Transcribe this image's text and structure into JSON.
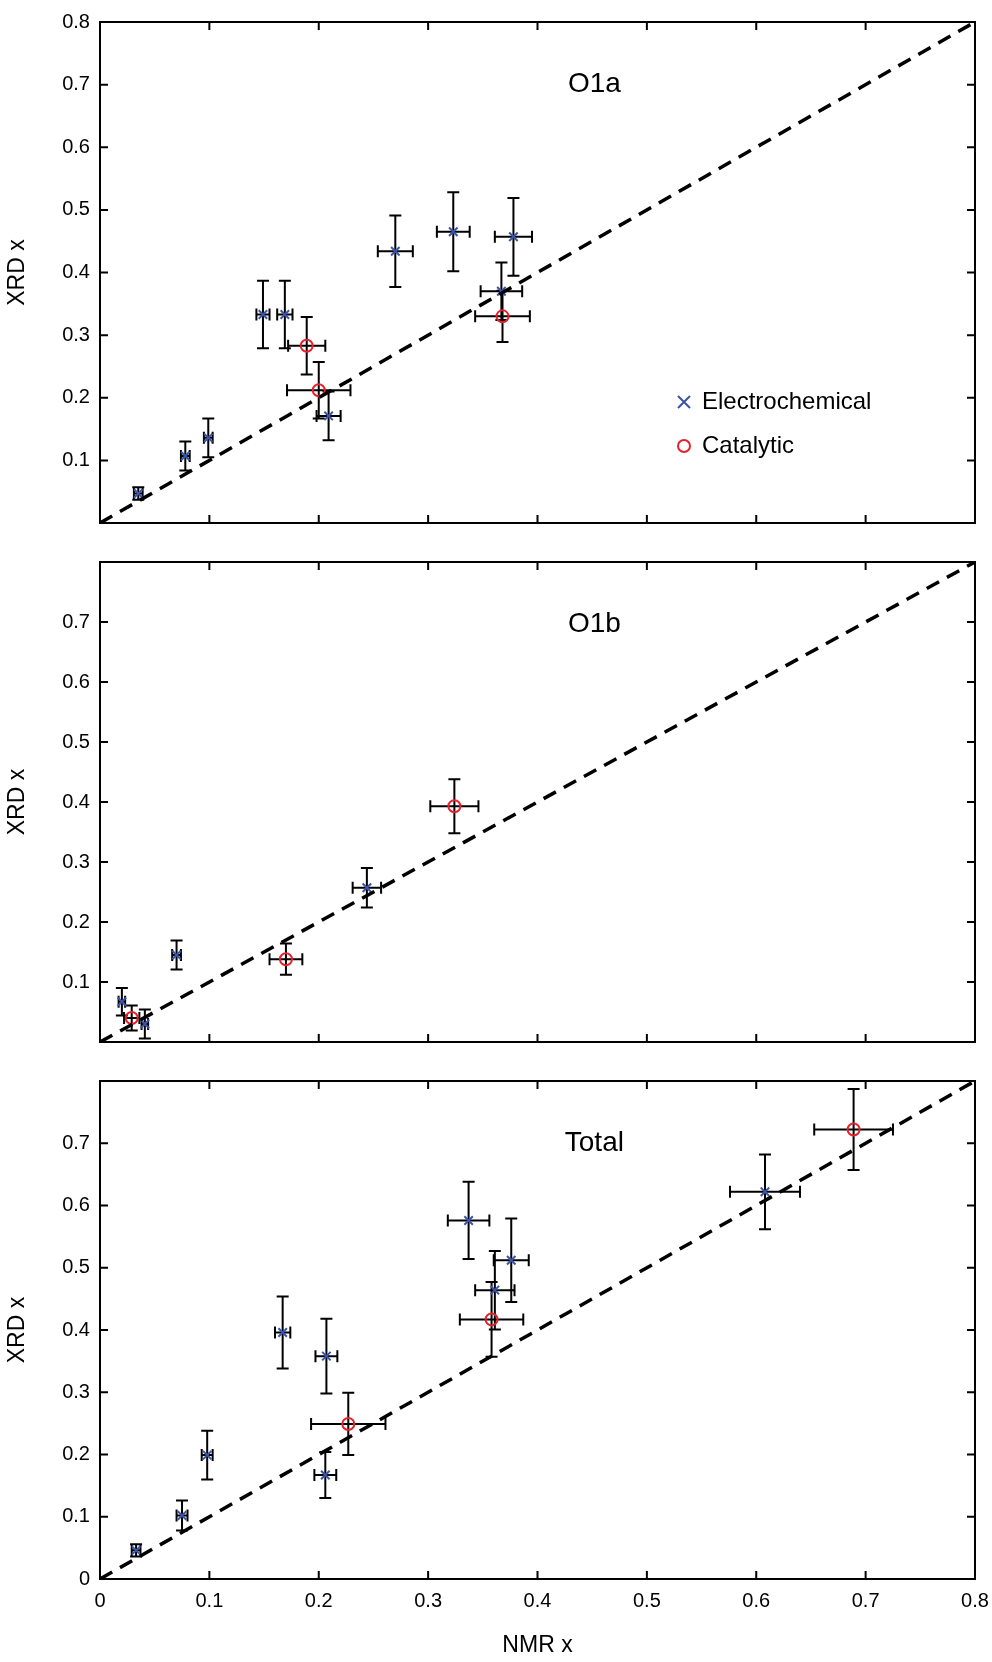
{
  "chart_data": [
    {
      "type": "scatter",
      "title": "O1a",
      "ylabel": "XRD x",
      "xlim": [
        0,
        0.8
      ],
      "xticks": [
        0,
        0.1,
        0.2,
        0.3,
        0.4,
        0.5,
        0.6,
        0.7,
        0.8
      ],
      "ylim": [
        0,
        0.8
      ],
      "yticks": [
        0.1,
        0.2,
        0.3,
        0.4,
        0.5,
        0.6,
        0.7,
        0.8
      ],
      "tick_labels": "y",
      "legend": "bottom right",
      "series": [
        {
          "type": "line",
          "color": "#000000",
          "marker": "none",
          "line_style": "dashed",
          "x": [
            0,
            0.8
          ],
          "values": [
            0,
            0.8
          ]
        },
        {
          "name": "Electrochemical",
          "color": "#3a55a4",
          "marker": "cross",
          "x": [
            0.035,
            0.078,
            0.099,
            0.149,
            0.169,
            0.209,
            0.27,
            0.323,
            0.367,
            0.378
          ],
          "values": [
            0.047,
            0.107,
            0.136,
            0.333,
            0.333,
            0.171,
            0.434,
            0.465,
            0.37,
            0.457
          ],
          "errors": [
            0.01,
            0.023,
            0.031,
            0.054,
            0.054,
            0.039,
            0.057,
            0.063,
            0.046,
            0.062
          ],
          "xerrors": [
            0.004,
            0.004,
            0.004,
            0.006,
            0.007,
            0.011,
            0.016,
            0.015,
            0.019,
            0.017
          ]
        },
        {
          "name": "Catalytic",
          "color": "#e8202a",
          "marker": "circle",
          "x": [
            0.189,
            0.2,
            0.368
          ],
          "values": [
            0.283,
            0.212,
            0.33
          ],
          "errors": [
            0.046,
            0.045,
            0.041
          ],
          "xerrors": [
            0.017,
            0.029,
            0.025
          ]
        }
      ]
    },
    {
      "type": "scatter",
      "title": "O1b",
      "ylabel": "XRD x",
      "xlim": [
        0,
        0.8
      ],
      "xticks": [
        0,
        0.1,
        0.2,
        0.3,
        0.4,
        0.5,
        0.6,
        0.7,
        0.8
      ],
      "ylim": [
        0,
        0.8
      ],
      "yticks": [
        0.1,
        0.2,
        0.3,
        0.4,
        0.5,
        0.6,
        0.7
      ],
      "tick_labels": "y",
      "series": [
        {
          "type": "line",
          "color": "#000000",
          "marker": "none",
          "line_style": "dashed",
          "x": [
            0,
            0.8
          ],
          "values": [
            0,
            0.8
          ]
        },
        {
          "color": "#3a55a4",
          "marker": "cross",
          "x": [
            0.02,
            0.041,
            0.07,
            0.244
          ],
          "values": [
            0.067,
            0.03,
            0.145,
            0.257
          ],
          "errors": [
            0.023,
            0.024,
            0.024,
            0.033
          ],
          "xerrors": [
            0.003,
            0.003,
            0.004,
            0.013
          ]
        },
        {
          "color": "#e8202a",
          "marker": "circle",
          "x": [
            0.029,
            0.17,
            0.324
          ],
          "values": [
            0.04,
            0.138,
            0.393
          ],
          "errors": [
            0.021,
            0.026,
            0.045
          ],
          "xerrors": [
            0.007,
            0.015,
            0.022
          ]
        }
      ]
    },
    {
      "type": "scatter",
      "title": "Total",
      "xlabel": "NMR x",
      "ylabel": "XRD x",
      "xlim": [
        0,
        0.8
      ],
      "xticks": [
        0,
        0.1,
        0.2,
        0.3,
        0.4,
        0.5,
        0.6,
        0.7,
        0.8
      ],
      "ylim": [
        0,
        0.8
      ],
      "yticks": [
        0,
        0.1,
        0.2,
        0.3,
        0.4,
        0.5,
        0.6,
        0.7
      ],
      "series": [
        {
          "type": "line",
          "color": "#000000",
          "marker": "none",
          "line_style": "dashed",
          "x": [
            0,
            0.8
          ],
          "values": [
            0,
            0.8
          ]
        },
        {
          "color": "#3a55a4",
          "marker": "cross",
          "x": [
            0.033,
            0.075,
            0.098,
            0.167,
            0.207,
            0.206,
            0.337,
            0.361,
            0.376,
            0.608
          ],
          "values": [
            0.046,
            0.102,
            0.199,
            0.396,
            0.358,
            0.167,
            0.576,
            0.464,
            0.512,
            0.622
          ],
          "errors": [
            0.01,
            0.024,
            0.039,
            0.058,
            0.06,
            0.037,
            0.062,
            0.063,
            0.067,
            0.06
          ],
          "xerrors": [
            0.004,
            0.005,
            0.005,
            0.007,
            0.01,
            0.01,
            0.019,
            0.018,
            0.016,
            0.032
          ]
        },
        {
          "color": "#e8202a",
          "marker": "circle",
          "x": [
            0.227,
            0.358,
            0.689
          ],
          "values": [
            0.249,
            0.417,
            0.722
          ],
          "errors": [
            0.05,
            0.06,
            0.065
          ],
          "xerrors": [
            0.034,
            0.029,
            0.036
          ]
        }
      ]
    }
  ]
}
